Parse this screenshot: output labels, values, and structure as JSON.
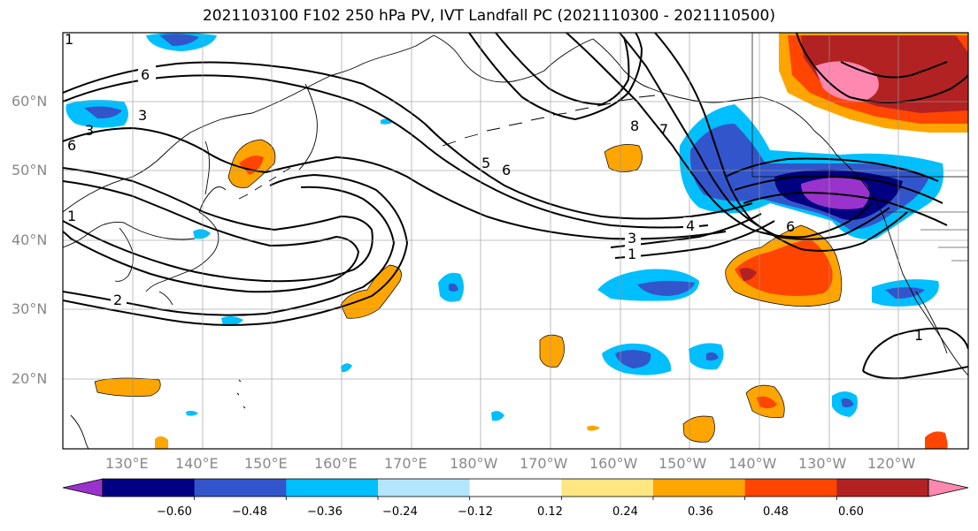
{
  "title": "2021103100 F102 250 hPa PV, IVT Landfall PC (2021110300 - 2021110500)",
  "lat_labels": [
    "60°N",
    "50°N",
    "40°N",
    "30°N",
    "20°N"
  ],
  "lon_labels": [
    "130°E",
    "140°E",
    "150°E",
    "160°E",
    "170°E",
    "180°W",
    "170°W",
    "160°W",
    "150°W",
    "140°W",
    "130°W",
    "120°W"
  ],
  "contour_labels": [
    "6",
    "3",
    "3",
    "6",
    "6",
    "7",
    "3",
    "1",
    "4",
    "6",
    "2",
    "1",
    "1",
    "1",
    "5",
    "8"
  ],
  "colorbar": {
    "ticks": [
      "−0.60",
      "−0.48",
      "−0.36",
      "−0.24",
      "−0.12",
      "0.12",
      "0.24",
      "0.36",
      "0.48",
      "0.60"
    ],
    "colors": [
      "#9933cc",
      "#000080",
      "#3355cc",
      "#00bfff",
      "#b3e5fc",
      "#ffffff",
      "#ffe680",
      "#ffa500",
      "#ff4500",
      "#b22222",
      "#ff88b0"
    ]
  }
}
